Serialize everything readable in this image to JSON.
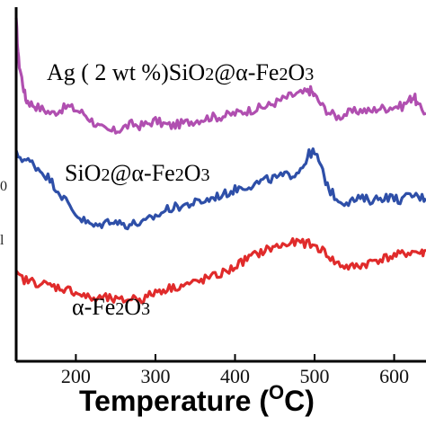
{
  "chart_data": {
    "type": "line",
    "title": "",
    "xlabel_main": "Temperature (",
    "xlabel_sup": "O",
    "xlabel_end": "C)",
    "ylabel": "",
    "xlim": [
      125,
      640
    ],
    "ylim": [
      0,
      1
    ],
    "x_ticks": [
      200,
      300,
      400,
      500,
      600
    ],
    "x_tick_labels": [
      "200",
      "300",
      "400",
      "500",
      "600"
    ],
    "left_edge_fragments": [
      "0",
      "l"
    ],
    "grid": false,
    "legend": "none",
    "series": [
      {
        "label_parts": [
          "Ag ( 2 wt %)SiO",
          "2",
          "@α-Fe",
          "2",
          "O",
          "3"
        ],
        "color": "#b04fb0",
        "points": [
          [
            125,
            0.96
          ],
          [
            128,
            0.85
          ],
          [
            132,
            0.8
          ],
          [
            137,
            0.74
          ],
          [
            142,
            0.73
          ],
          [
            150,
            0.72
          ],
          [
            160,
            0.71
          ],
          [
            170,
            0.7
          ],
          [
            180,
            0.71
          ],
          [
            190,
            0.72
          ],
          [
            200,
            0.71
          ],
          [
            210,
            0.7
          ],
          [
            220,
            0.68
          ],
          [
            230,
            0.66
          ],
          [
            240,
            0.65
          ],
          [
            250,
            0.65
          ],
          [
            260,
            0.66
          ],
          [
            270,
            0.67
          ],
          [
            280,
            0.665
          ],
          [
            290,
            0.67
          ],
          [
            300,
            0.68
          ],
          [
            310,
            0.67
          ],
          [
            320,
            0.665
          ],
          [
            330,
            0.67
          ],
          [
            340,
            0.675
          ],
          [
            350,
            0.68
          ],
          [
            360,
            0.685
          ],
          [
            370,
            0.69
          ],
          [
            380,
            0.69
          ],
          [
            390,
            0.695
          ],
          [
            400,
            0.7
          ],
          [
            410,
            0.705
          ],
          [
            420,
            0.71
          ],
          [
            430,
            0.715
          ],
          [
            440,
            0.72
          ],
          [
            450,
            0.73
          ],
          [
            460,
            0.74
          ],
          [
            470,
            0.75
          ],
          [
            480,
            0.755
          ],
          [
            490,
            0.76
          ],
          [
            495,
            0.765
          ],
          [
            500,
            0.75
          ],
          [
            510,
            0.72
          ],
          [
            520,
            0.7
          ],
          [
            530,
            0.69
          ],
          [
            540,
            0.7
          ],
          [
            550,
            0.705
          ],
          [
            560,
            0.71
          ],
          [
            570,
            0.705
          ],
          [
            580,
            0.715
          ],
          [
            590,
            0.715
          ],
          [
            600,
            0.72
          ],
          [
            610,
            0.72
          ],
          [
            620,
            0.74
          ],
          [
            625,
            0.75
          ],
          [
            630,
            0.72
          ],
          [
            640,
            0.7
          ]
        ]
      },
      {
        "label_parts": [
          "SiO",
          "2",
          "@α-Fe",
          "2",
          "O",
          "3"
        ],
        "color": "#2e4fa8",
        "points": [
          [
            125,
            0.585
          ],
          [
            135,
            0.57
          ],
          [
            145,
            0.56
          ],
          [
            155,
            0.54
          ],
          [
            165,
            0.52
          ],
          [
            175,
            0.49
          ],
          [
            185,
            0.46
          ],
          [
            195,
            0.43
          ],
          [
            205,
            0.405
          ],
          [
            215,
            0.39
          ],
          [
            225,
            0.38
          ],
          [
            235,
            0.39
          ],
          [
            245,
            0.4
          ],
          [
            255,
            0.39
          ],
          [
            265,
            0.385
          ],
          [
            275,
            0.39
          ],
          [
            285,
            0.39
          ],
          [
            295,
            0.405
          ],
          [
            305,
            0.415
          ],
          [
            315,
            0.43
          ],
          [
            325,
            0.435
          ],
          [
            335,
            0.44
          ],
          [
            345,
            0.445
          ],
          [
            355,
            0.45
          ],
          [
            365,
            0.455
          ],
          [
            375,
            0.465
          ],
          [
            385,
            0.47
          ],
          [
            395,
            0.48
          ],
          [
            405,
            0.49
          ],
          [
            415,
            0.495
          ],
          [
            425,
            0.5
          ],
          [
            435,
            0.51
          ],
          [
            445,
            0.515
          ],
          [
            455,
            0.52
          ],
          [
            465,
            0.525
          ],
          [
            475,
            0.53
          ],
          [
            485,
            0.55
          ],
          [
            493,
            0.585
          ],
          [
            498,
            0.59
          ],
          [
            505,
            0.57
          ],
          [
            512,
            0.52
          ],
          [
            520,
            0.48
          ],
          [
            530,
            0.455
          ],
          [
            540,
            0.45
          ],
          [
            550,
            0.455
          ],
          [
            560,
            0.46
          ],
          [
            570,
            0.455
          ],
          [
            580,
            0.46
          ],
          [
            590,
            0.465
          ],
          [
            600,
            0.46
          ],
          [
            610,
            0.455
          ],
          [
            620,
            0.47
          ],
          [
            630,
            0.465
          ],
          [
            640,
            0.46
          ]
        ]
      },
      {
        "label_parts": [
          "α-Fe",
          "2",
          "O",
          "3"
        ],
        "color": "#e02b2b",
        "points": [
          [
            125,
            0.245
          ],
          [
            135,
            0.23
          ],
          [
            145,
            0.225
          ],
          [
            155,
            0.22
          ],
          [
            165,
            0.215
          ],
          [
            175,
            0.21
          ],
          [
            185,
            0.205
          ],
          [
            195,
            0.2
          ],
          [
            205,
            0.19
          ],
          [
            215,
            0.18
          ],
          [
            225,
            0.175
          ],
          [
            235,
            0.18
          ],
          [
            245,
            0.175
          ],
          [
            255,
            0.17
          ],
          [
            265,
            0.175
          ],
          [
            275,
            0.18
          ],
          [
            285,
            0.175
          ],
          [
            295,
            0.19
          ],
          [
            305,
            0.2
          ],
          [
            315,
            0.205
          ],
          [
            325,
            0.21
          ],
          [
            335,
            0.215
          ],
          [
            345,
            0.22
          ],
          [
            355,
            0.225
          ],
          [
            365,
            0.235
          ],
          [
            375,
            0.24
          ],
          [
            385,
            0.25
          ],
          [
            395,
            0.26
          ],
          [
            405,
            0.275
          ],
          [
            415,
            0.29
          ],
          [
            425,
            0.3
          ],
          [
            435,
            0.31
          ],
          [
            445,
            0.32
          ],
          [
            455,
            0.325
          ],
          [
            465,
            0.33
          ],
          [
            475,
            0.335
          ],
          [
            485,
            0.335
          ],
          [
            495,
            0.33
          ],
          [
            505,
            0.32
          ],
          [
            515,
            0.305
          ],
          [
            525,
            0.28
          ],
          [
            535,
            0.27
          ],
          [
            545,
            0.265
          ],
          [
            555,
            0.27
          ],
          [
            565,
            0.275
          ],
          [
            575,
            0.285
          ],
          [
            585,
            0.29
          ],
          [
            595,
            0.295
          ],
          [
            605,
            0.3
          ],
          [
            615,
            0.305
          ],
          [
            625,
            0.31
          ],
          [
            635,
            0.305
          ],
          [
            640,
            0.31
          ]
        ]
      }
    ]
  }
}
